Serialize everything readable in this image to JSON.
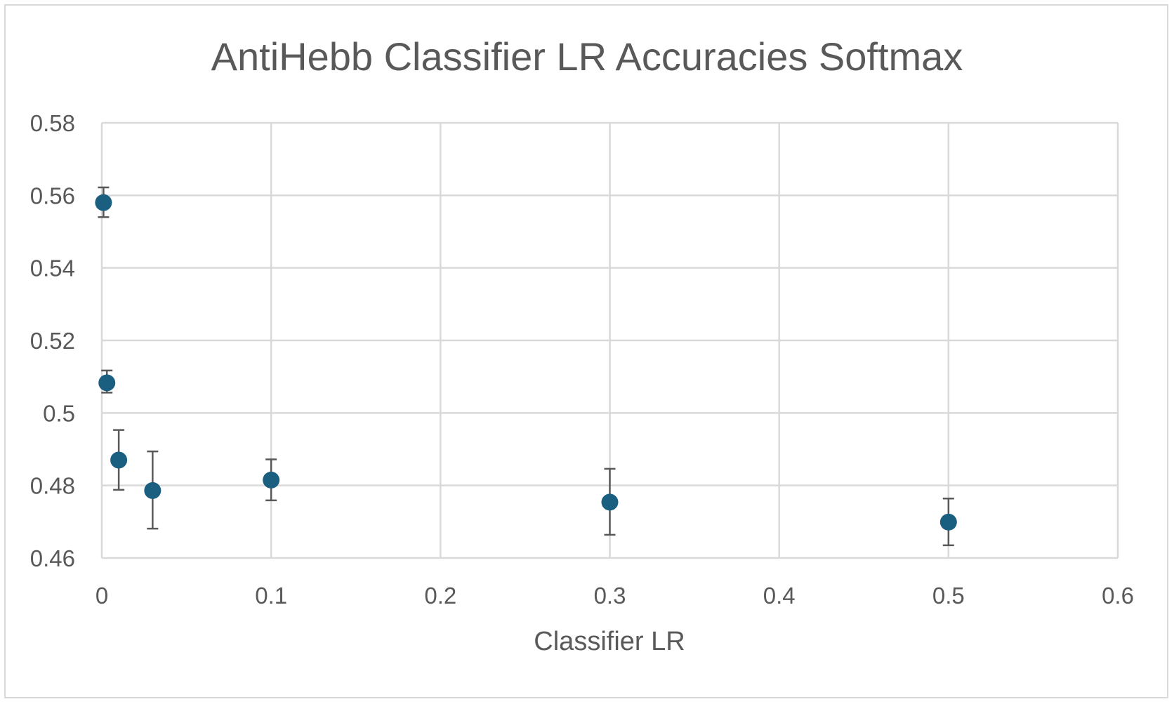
{
  "chart_data": {
    "type": "scatter",
    "title": "AntiHebb Classifier LR Accuracies Softmax",
    "xlabel": "Classifier LR",
    "ylabel": "",
    "xlim": [
      0,
      0.6
    ],
    "ylim": [
      0.46,
      0.58
    ],
    "xticks": [
      0,
      0.1,
      0.2,
      0.3,
      0.4,
      0.5,
      0.6
    ],
    "xtick_labels": [
      "0",
      "0.1",
      "0.2",
      "0.3",
      "0.4",
      "0.5",
      "0.6"
    ],
    "yticks": [
      0.46,
      0.48,
      0.5,
      0.52,
      0.54,
      0.56,
      0.58
    ],
    "ytick_labels": [
      "0.46",
      "0.48",
      "0.5",
      "0.52",
      "0.54",
      "0.56",
      "0.58"
    ],
    "grid": true,
    "legend": "none",
    "marker_color": "#1a5e80",
    "errorbar_color": "#595959",
    "gridline_color": "#d9d9d9",
    "points": [
      {
        "x": 0.001,
        "y": 0.558,
        "err_low": 0.554,
        "err_high": 0.5622
      },
      {
        "x": 0.003,
        "y": 0.5083,
        "err_low": 0.5056,
        "err_high": 0.5117
      },
      {
        "x": 0.01,
        "y": 0.487,
        "err_low": 0.4788,
        "err_high": 0.4953
      },
      {
        "x": 0.03,
        "y": 0.4786,
        "err_low": 0.4681,
        "err_high": 0.4894
      },
      {
        "x": 0.1,
        "y": 0.4815,
        "err_low": 0.4759,
        "err_high": 0.4872
      },
      {
        "x": 0.3,
        "y": 0.4754,
        "err_low": 0.4664,
        "err_high": 0.4846
      },
      {
        "x": 0.5,
        "y": 0.4699,
        "err_low": 0.4635,
        "err_high": 0.4764
      }
    ]
  }
}
